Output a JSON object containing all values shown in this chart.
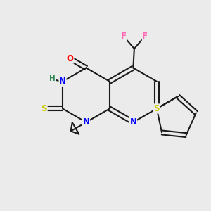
{
  "background_color": "#ebebeb",
  "bond_color": "#1a1a1a",
  "atom_colors": {
    "F": "#ff69b4",
    "O": "#ff0000",
    "N": "#0000ff",
    "S": "#cccc00",
    "H": "#2e8b57",
    "C": "#1a1a1a"
  },
  "figsize": [
    3.0,
    3.0
  ],
  "dpi": 100
}
